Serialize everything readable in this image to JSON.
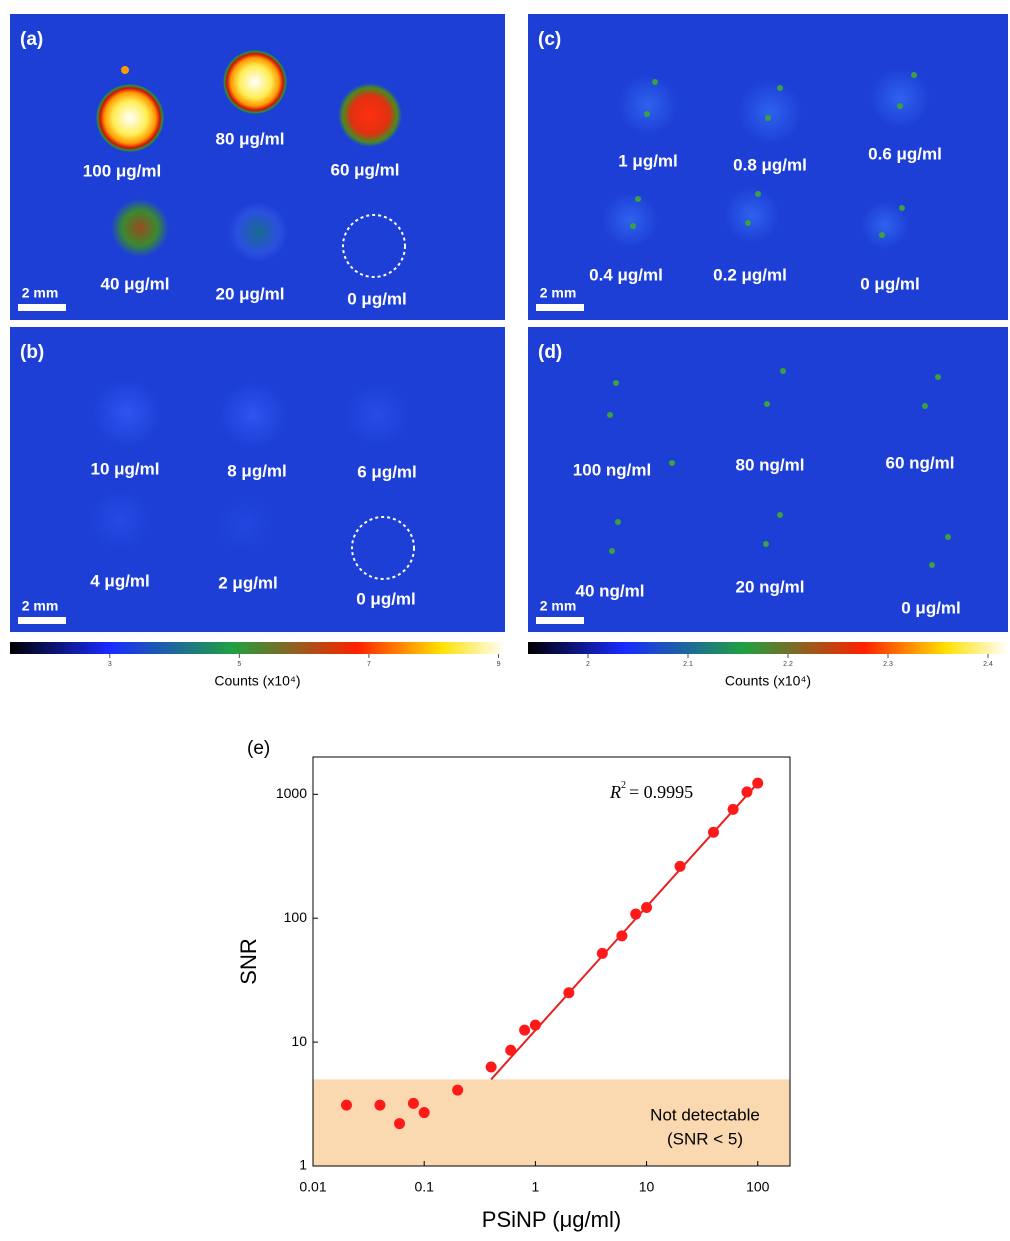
{
  "panels": [
    {
      "letter": "(a)",
      "scale_bar": "2 mm",
      "labels": [
        "100 μg/ml",
        "80 μg/ml",
        "60 μg/ml",
        "40 μg/ml",
        "20 μg/ml",
        "0 μg/ml"
      ]
    },
    {
      "letter": "(b)",
      "scale_bar": "2 mm",
      "labels": [
        "10 μg/ml",
        "8 μg/ml",
        "6 μg/ml",
        "4 μg/ml",
        "2 μg/ml",
        "0 μg/ml"
      ]
    },
    {
      "letter": "(c)",
      "scale_bar": "2 mm",
      "labels": [
        "1 μg/ml",
        "0.8 μg/ml",
        "0.6 μg/ml",
        "0.4 μg/ml",
        "0.2 μg/ml",
        "0 μg/ml"
      ]
    },
    {
      "letter": "(d)",
      "scale_bar": "2 mm",
      "labels": [
        "100 ng/ml",
        "80 ng/ml",
        "60 ng/ml",
        "40 ng/ml",
        "20 ng/ml",
        "0 μg/ml"
      ]
    }
  ],
  "colorbars": [
    {
      "label": "Counts (x10⁴)",
      "range": [
        1.46,
        9.1
      ],
      "ticks": [
        3,
        5,
        7,
        9
      ]
    },
    {
      "label": "Counts (x10⁴)",
      "range": [
        1.94,
        2.42
      ],
      "ticks": [
        2,
        2.1,
        2.2,
        2.3,
        2.4
      ]
    }
  ],
  "chart_data": {
    "type": "scatter",
    "panel": "(e)",
    "x_label": "PSiNP (μg/ml)",
    "y_label": "SNR",
    "x_log": true,
    "y_log": true,
    "xlim": [
      0.01,
      195
    ],
    "ylim": [
      1,
      2000
    ],
    "xticks": [
      0.01,
      0.1,
      1,
      10,
      100
    ],
    "yticks": [
      1,
      10,
      100,
      1000
    ],
    "x": [
      0.02,
      0.04,
      0.06,
      0.08,
      0.1,
      0.2,
      0.4,
      0.6,
      0.8,
      1,
      2,
      4,
      6,
      8,
      10,
      20,
      40,
      60,
      80,
      100
    ],
    "values": [
      3.1,
      3.1,
      2.2,
      3.2,
      2.7,
      4.1,
      6.3,
      8.6,
      12.5,
      13.7,
      25,
      52,
      72,
      108,
      122,
      262,
      494,
      755,
      1045,
      1230
    ],
    "color": "#ff1a1a",
    "fit": {
      "x": [
        0.4,
        100
      ],
      "y": [
        5,
        1230
      ],
      "color": "#e82020"
    },
    "r2": {
      "symbol": "R",
      "superscript": "2",
      "text": "= 0.9995"
    },
    "threshold": 5,
    "threshold_color": "#fad9b0",
    "threshold_text": [
      "Not detectable",
      "(SNR < 5)"
    ]
  }
}
